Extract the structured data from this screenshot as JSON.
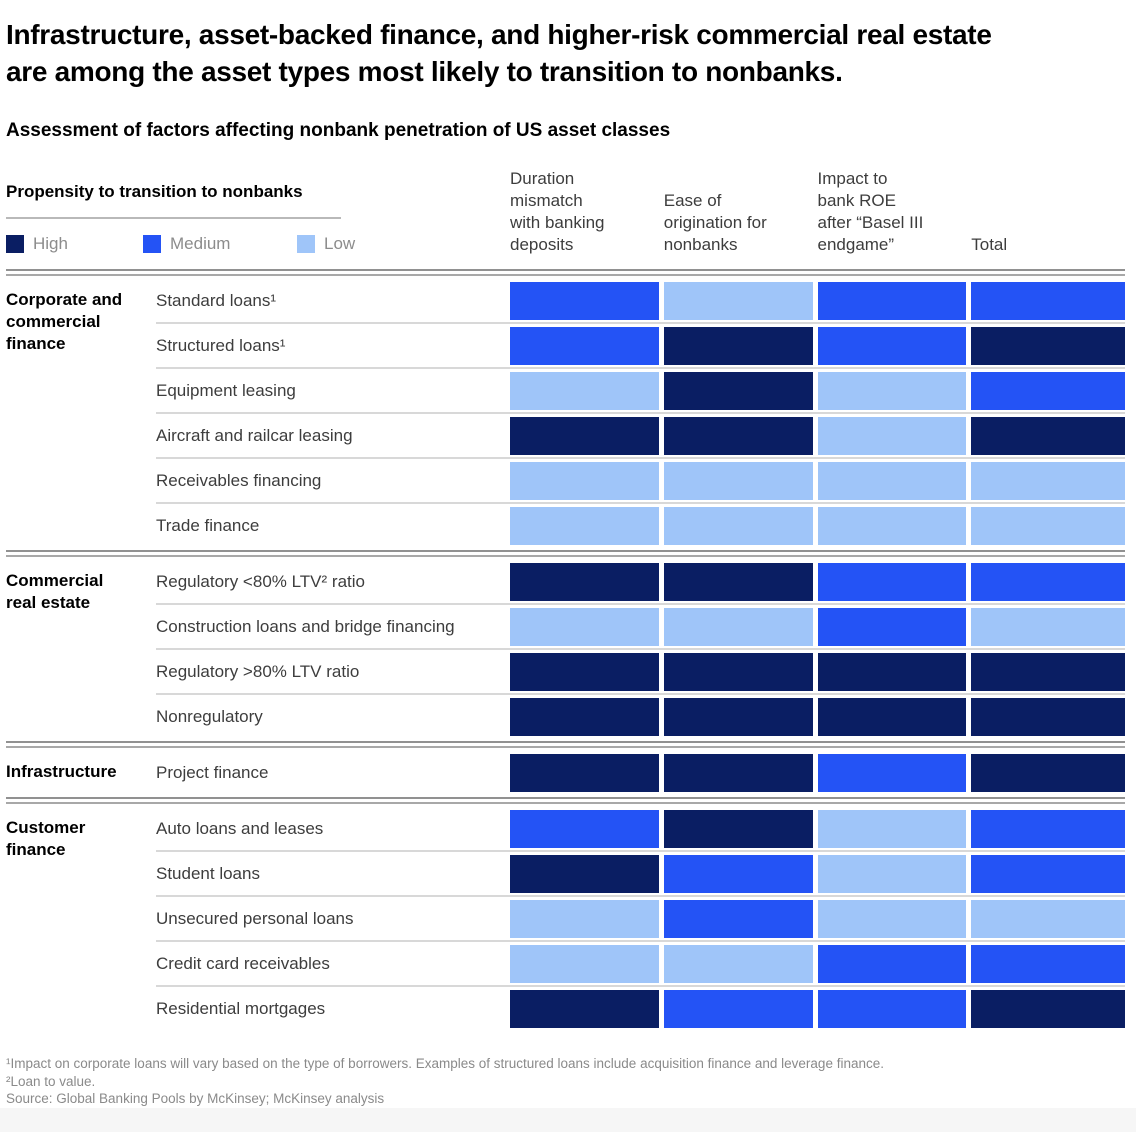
{
  "title": "Infrastructure, asset-backed finance, and higher-risk commercial real estate\nare among the asset types most likely to transition to nonbanks.",
  "subtitle": "Assessment of factors affecting nonbank penetration of US asset classes",
  "legend": {
    "title": "Propensity to transition to nonbanks",
    "levels": [
      {
        "key": "High",
        "label": "High",
        "color": "#0A1E63"
      },
      {
        "key": "Medium",
        "label": "Medium",
        "color": "#2453F5"
      },
      {
        "key": "Low",
        "label": "Low",
        "color": "#9FC5F9"
      }
    ]
  },
  "chart_data": {
    "type": "heatmap",
    "title": "Assessment of factors affecting nonbank penetration of US asset classes",
    "value_scale": [
      "Low",
      "Medium",
      "High"
    ],
    "colors": {
      "High": "#0A1E63",
      "Medium": "#2453F5",
      "Low": "#9FC5F9"
    },
    "columns": [
      "Duration\nmismatch\nwith banking\ndeposits",
      "Ease of\norigination for\nnonbanks",
      "Impact to\nbank ROE\nafter “Basel III\nendgame”",
      "Total"
    ],
    "groups": [
      {
        "label": "Corporate and commercial finance",
        "rows": [
          {
            "label": "Standard loans¹",
            "values": [
              "Medium",
              "Low",
              "Medium",
              "Medium"
            ]
          },
          {
            "label": "Structured loans¹",
            "values": [
              "Medium",
              "High",
              "Medium",
              "High"
            ]
          },
          {
            "label": "Equipment leasing",
            "values": [
              "Low",
              "High",
              "Low",
              "Medium"
            ]
          },
          {
            "label": "Aircraft and railcar leasing",
            "values": [
              "High",
              "High",
              "Low",
              "High"
            ]
          },
          {
            "label": "Receivables financing",
            "values": [
              "Low",
              "Low",
              "Low",
              "Low"
            ]
          },
          {
            "label": "Trade finance",
            "values": [
              "Low",
              "Low",
              "Low",
              "Low"
            ]
          }
        ]
      },
      {
        "label": "Commercial real estate",
        "rows": [
          {
            "label": "Regulatory <80% LTV² ratio",
            "values": [
              "High",
              "High",
              "Medium",
              "Medium"
            ]
          },
          {
            "label": "Construction loans and bridge financing",
            "values": [
              "Low",
              "Low",
              "Medium",
              "Low"
            ]
          },
          {
            "label": "Regulatory >80% LTV ratio",
            "values": [
              "High",
              "High",
              "High",
              "High"
            ]
          },
          {
            "label": "Nonregulatory",
            "values": [
              "High",
              "High",
              "High",
              "High"
            ]
          }
        ]
      },
      {
        "label": "Infrastructure",
        "rows": [
          {
            "label": "Project finance",
            "values": [
              "High",
              "High",
              "Medium",
              "High"
            ]
          }
        ]
      },
      {
        "label": "Customer finance",
        "rows": [
          {
            "label": "Auto loans and leases",
            "values": [
              "Medium",
              "High",
              "Low",
              "Medium"
            ]
          },
          {
            "label": "Student loans",
            "values": [
              "High",
              "Medium",
              "Low",
              "Medium"
            ]
          },
          {
            "label": "Unsecured personal loans",
            "values": [
              "Low",
              "Medium",
              "Low",
              "Low"
            ]
          },
          {
            "label": "Credit card receivables",
            "values": [
              "Low",
              "Low",
              "Medium",
              "Medium"
            ]
          },
          {
            "label": "Residential mortgages",
            "values": [
              "High",
              "Medium",
              "Medium",
              "High"
            ]
          }
        ]
      }
    ]
  },
  "footnotes": [
    "¹Impact on corporate loans will vary based on the type of borrowers. Examples of structured loans include acquisition finance and leverage finance.",
    "²Loan to value.",
    "Source: Global Banking Pools by McKinsey; McKinsey analysis"
  ]
}
